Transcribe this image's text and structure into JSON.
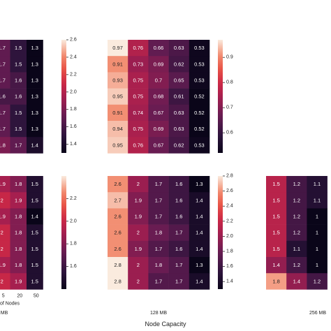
{
  "xlabel": "Node Capacity",
  "chart_data": [
    {
      "type": "heatmap",
      "cols": 3,
      "values": [
        [
          1.7,
          1.5,
          1.3
        ],
        [
          1.7,
          1.5,
          1.3
        ],
        [
          1.7,
          1.6,
          1.3
        ],
        [
          1.6,
          1.6,
          1.3
        ],
        [
          1.7,
          1.5,
          1.3
        ],
        [
          1.7,
          1.5,
          1.3
        ],
        [
          1.8,
          1.7,
          1.4
        ]
      ],
      "vmin": 1.3,
      "vmax": 2.6,
      "colorbar_ticks": [
        "2.6",
        "2.4",
        "2.2",
        "2.0",
        "1.8",
        "1.6",
        "1.4"
      ],
      "xticks": [],
      "xlabel": "",
      "sublabel": ""
    },
    {
      "type": "heatmap",
      "cols": 5,
      "values": [
        [
          0.97,
          0.76,
          0.66,
          0.63,
          0.53
        ],
        [
          0.91,
          0.73,
          0.69,
          0.62,
          0.53
        ],
        [
          0.93,
          0.75,
          0.7,
          0.65,
          0.53
        ],
        [
          0.95,
          0.75,
          0.68,
          0.61,
          0.52
        ],
        [
          0.91,
          0.74,
          0.67,
          0.63,
          0.52
        ],
        [
          0.94,
          0.75,
          0.69,
          0.63,
          0.52
        ],
        [
          0.95,
          0.76,
          0.67,
          0.62,
          0.53
        ]
      ],
      "vmin": 0.52,
      "vmax": 0.97,
      "colorbar_ticks": [
        "0.9",
        "0.8",
        "0.7",
        "0.6"
      ],
      "xticks": [],
      "xlabel": "",
      "sublabel": ""
    },
    {
      "type": "heatmap",
      "cols": 3,
      "values": [
        [
          1.9,
          1.8,
          1.5
        ],
        [
          2,
          1.9,
          1.5
        ],
        [
          1.9,
          1.8,
          1.4
        ],
        [
          2,
          1.8,
          1.5
        ],
        [
          2,
          1.8,
          1.5
        ],
        [
          1.9,
          1.8,
          1.5
        ],
        [
          2,
          1.9,
          1.5
        ]
      ],
      "vmin": 1.4,
      "vmax": 2.4,
      "colorbar_ticks": [
        "2.2",
        "2.0",
        "1.8",
        "1.6"
      ],
      "xticks": [
        "5",
        "20",
        "50"
      ],
      "xlabel": "of Nodes",
      "sublabel": "MB"
    },
    {
      "type": "heatmap",
      "cols": 5,
      "values": [
        [
          2.6,
          2,
          1.7,
          1.6,
          1.3
        ],
        [
          2.7,
          1.9,
          1.7,
          1.6,
          1.4
        ],
        [
          2.6,
          1.9,
          1.7,
          1.6,
          1.4
        ],
        [
          2.6,
          2,
          1.8,
          1.7,
          1.4
        ],
        [
          2.6,
          1.9,
          1.7,
          1.6,
          1.4
        ],
        [
          2.8,
          2,
          1.8,
          1.7,
          1.3
        ],
        [
          2.8,
          2,
          1.7,
          1.7,
          1.4
        ]
      ],
      "vmin": 1.3,
      "vmax": 2.8,
      "colorbar_ticks": [
        "2.8",
        "2.6",
        "2.4",
        "2.2",
        "2.0",
        "1.8",
        "1.6",
        "1.4"
      ],
      "xticks": [],
      "xlabel": "",
      "sublabel": "128 MB"
    },
    {
      "type": "heatmap",
      "cols": 4,
      "values": [
        [
          1.5,
          1.2,
          1.1,
          null
        ],
        [
          1.5,
          1.2,
          1.1,
          null
        ],
        [
          1.5,
          1.2,
          1,
          null
        ],
        [
          1.5,
          1.2,
          1,
          null
        ],
        [
          1.5,
          1.1,
          1,
          null
        ],
        [
          1.4,
          1.2,
          1,
          null
        ],
        [
          1.8,
          1.4,
          1.2,
          null
        ]
      ],
      "vmin": 1.0,
      "vmax": 1.9,
      "colorbar_ticks": [],
      "xticks": [],
      "xlabel": "",
      "sublabel": "256 MB"
    }
  ]
}
